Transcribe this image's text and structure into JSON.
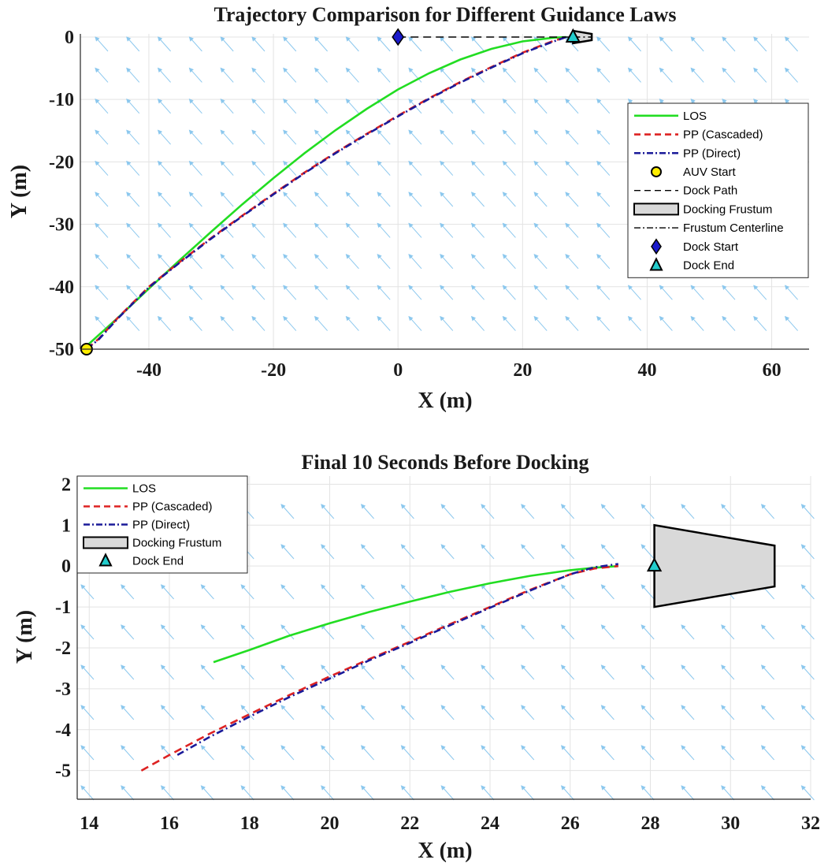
{
  "chart_data": [
    {
      "type": "line",
      "title": "Trajectory Comparison for Different Guidance Laws",
      "xlabel": "X (m)",
      "ylabel": "Y (m)",
      "xlim": [
        -51,
        66
      ],
      "ylim": [
        -50,
        0.5
      ],
      "xticks": [
        -40,
        -20,
        0,
        20,
        40,
        60
      ],
      "yticks": [
        0,
        -10,
        -20,
        -30,
        -40,
        -50
      ],
      "grid": true,
      "legend_position": "right",
      "colors": {
        "los": "#22dd22",
        "pp_cascaded": "#dd2222",
        "pp_direct": "#1a1a99",
        "quiver": "#8cc8ee"
      },
      "series": [
        {
          "name": "LOS",
          "style": "solid",
          "color": "#22dd22",
          "x": [
            -50,
            -45,
            -40,
            -35,
            -30,
            -25,
            -20,
            -15,
            -10,
            -5,
            0,
            5,
            10,
            15,
            20,
            25,
            27
          ],
          "y": [
            -49.5,
            -45.0,
            -40.3,
            -35.7,
            -31.2,
            -26.8,
            -22.6,
            -18.6,
            -14.9,
            -11.5,
            -8.4,
            -5.8,
            -3.6,
            -1.9,
            -0.7,
            -0.1,
            0
          ]
        },
        {
          "name": "PP (Cascaded)",
          "style": "dashed",
          "color": "#dd2222",
          "x": [
            -50,
            -48,
            -45,
            -40,
            -35,
            -30,
            -25,
            -20,
            -15,
            -10,
            -5,
            0,
            5,
            10,
            15,
            20,
            25,
            27
          ],
          "y": [
            -50,
            -48.3,
            -45.0,
            -40.0,
            -36.0,
            -32.2,
            -28.6,
            -25.1,
            -21.7,
            -18.5,
            -15.5,
            -12.6,
            -9.8,
            -7.2,
            -4.8,
            -2.5,
            -0.6,
            0
          ]
        },
        {
          "name": "PP (Direct)",
          "style": "dashdot",
          "color": "#1a1a99",
          "x": [
            -50,
            -48,
            -45,
            -40,
            -35,
            -30,
            -25,
            -20,
            -15,
            -10,
            -5,
            0,
            5,
            10,
            15,
            20,
            25,
            27
          ],
          "y": [
            -50,
            -48.4,
            -45.1,
            -40.1,
            -36.1,
            -32.3,
            -28.7,
            -25.2,
            -21.8,
            -18.6,
            -15.6,
            -12.7,
            -9.9,
            -7.3,
            -4.9,
            -2.6,
            -0.7,
            0
          ]
        },
        {
          "name": "AUV Start",
          "marker": "circle",
          "color": "#ffee00",
          "x": [
            -50
          ],
          "y": [
            -50
          ]
        },
        {
          "name": "Dock Path",
          "style": "dashed",
          "color": "#000000",
          "x": [
            0,
            28
          ],
          "y": [
            0,
            0
          ]
        },
        {
          "name": "Docking Frustum",
          "style": "patch",
          "color": "#d9d9d9",
          "x": [
            28.1,
            28.1,
            31.1,
            31.1
          ],
          "y": [
            1,
            -1,
            -0.5,
            0.5
          ]
        },
        {
          "name": "Frustum Centerline",
          "style": "dashdot",
          "color": "#000000",
          "x": [
            28.1,
            31.1
          ],
          "y": [
            0,
            0
          ]
        },
        {
          "name": "Dock Start",
          "marker": "diamond",
          "color": "#1a1acc",
          "x": [
            0
          ],
          "y": [
            0
          ]
        },
        {
          "name": "Dock End",
          "marker": "triangle",
          "color": "#22cccc",
          "x": [
            28.1
          ],
          "y": [
            0
          ]
        }
      ]
    },
    {
      "type": "line",
      "title": "Final 10 Seconds Before Docking",
      "xlabel": "X (m)",
      "ylabel": "Y (m)",
      "xlim": [
        13.7,
        32
      ],
      "ylim": [
        -5.7,
        2.2
      ],
      "xticks": [
        14,
        16,
        18,
        20,
        22,
        24,
        26,
        28,
        30,
        32
      ],
      "yticks": [
        2,
        1,
        0,
        -1,
        -2,
        -3,
        -4,
        -5
      ],
      "grid": true,
      "legend_position": "top-left",
      "series": [
        {
          "name": "LOS",
          "style": "solid",
          "color": "#22dd22",
          "x": [
            17.1,
            18,
            19,
            20,
            21,
            22,
            23,
            24,
            25,
            26,
            26.6,
            27.2
          ],
          "y": [
            -2.35,
            -2.05,
            -1.7,
            -1.4,
            -1.12,
            -0.87,
            -0.63,
            -0.42,
            -0.24,
            -0.1,
            -0.04,
            0
          ]
        },
        {
          "name": "PP (Cascaded)",
          "style": "dashed",
          "color": "#dd2222",
          "x": [
            15.3,
            16,
            17,
            18,
            19,
            20,
            21,
            22,
            23,
            24,
            25,
            26,
            26.6,
            27.2
          ],
          "y": [
            -5.0,
            -4.62,
            -4.1,
            -3.62,
            -3.15,
            -2.7,
            -2.27,
            -1.85,
            -1.42,
            -1.0,
            -0.58,
            -0.2,
            -0.06,
            0
          ]
        },
        {
          "name": "PP (Direct)",
          "style": "dashdot",
          "color": "#1a1a99",
          "x": [
            16.2,
            17,
            18,
            19,
            20,
            21,
            22,
            23,
            24,
            25,
            26,
            26.6,
            27.2
          ],
          "y": [
            -4.62,
            -4.18,
            -3.68,
            -3.2,
            -2.75,
            -2.3,
            -1.88,
            -1.45,
            -1.02,
            -0.6,
            -0.2,
            -0.03,
            0.05
          ]
        },
        {
          "name": "Docking Frustum",
          "style": "patch",
          "color": "#d9d9d9",
          "x": [
            28.1,
            28.1,
            31.1,
            31.1
          ],
          "y": [
            1,
            -1,
            -0.5,
            0.5
          ]
        },
        {
          "name": "Dock End",
          "marker": "triangle",
          "color": "#22cccc",
          "x": [
            28.1
          ],
          "y": [
            0
          ]
        }
      ]
    }
  ]
}
